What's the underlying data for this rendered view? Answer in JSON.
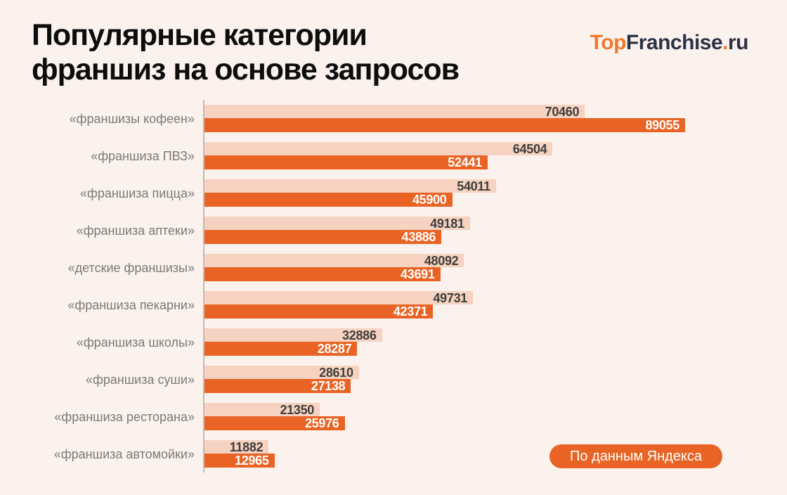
{
  "header": {
    "title_lines": [
      "Популярные категории",
      "франшиз на основе запросов"
    ]
  },
  "logo": {
    "prefix": "Top",
    "name": "Franchise",
    "dot": ".",
    "tld": "ru",
    "accent_color": "#f0792b",
    "text_color": "#2c3245"
  },
  "colors": {
    "background": "#fbf2ee",
    "accent_orange": "#e96424",
    "light_bar": "#f6d2c1",
    "axis_line": "#c4bab3",
    "category_label": "#7e7974",
    "title_text": "#0d0d0d"
  },
  "chart_data": {
    "type": "bar",
    "orientation": "horizontal",
    "title": "Популярные категории франшиз на основе запросов",
    "categories": [
      "«франшизы кофеен»",
      "«франшиза ПВЗ»",
      "«франшиза пицца»",
      "«франшиза аптеки»",
      "«детские франшизы»",
      "«франшиза пекарни»",
      "«франшиза школы»",
      "«франшиза суши»",
      "«франшиза ресторана»",
      "«франшиза автомойки»"
    ],
    "series": [
      {
        "name": "light-series",
        "color": "#f6d2c1",
        "label_color": "#3f3e3c",
        "values": [
          70460,
          64504,
          54011,
          49181,
          48092,
          49731,
          32886,
          28610,
          21350,
          11882
        ]
      },
      {
        "name": "orange-series",
        "color": "#e96424",
        "label_color": "#ffffff",
        "values": [
          89055,
          52441,
          45900,
          43886,
          43691,
          42371,
          28287,
          27138,
          25976,
          12965
        ]
      }
    ],
    "value_axis_max": 89055,
    "legend": "none",
    "grid": "off",
    "source_note": "По данным Яндекса"
  }
}
